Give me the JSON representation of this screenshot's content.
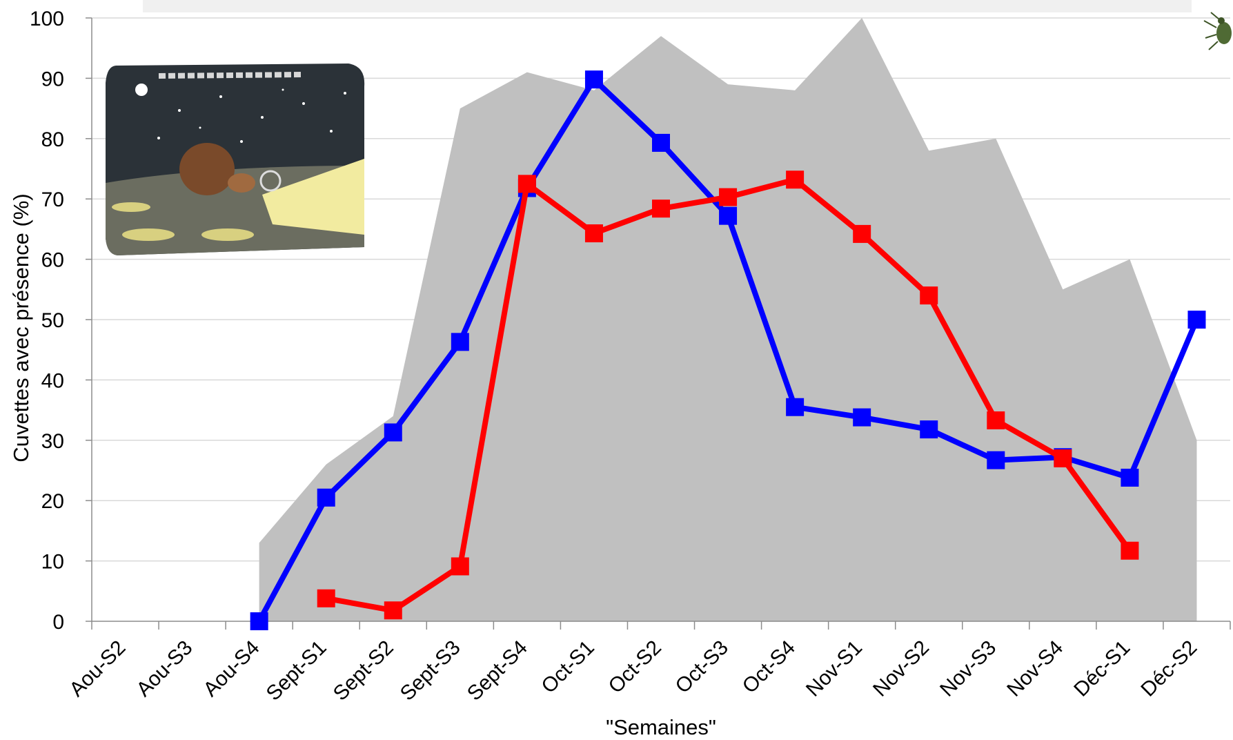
{
  "chart_data": {
    "type": "line",
    "title": "",
    "xlabel": "\"Semaines\"",
    "ylabel": "Cuvettes avec présence (%)",
    "ylim": [
      0,
      100
    ],
    "yticks": [
      0,
      10,
      20,
      30,
      40,
      50,
      60,
      70,
      80,
      90,
      100
    ],
    "grid": true,
    "categories": [
      "Aou-S2",
      "Aou-S3",
      "Aou-S4",
      "Sept-S1",
      "Sept-S2",
      "Sept-S3",
      "Sept-S4",
      "Oct-S1",
      "Oct-S2",
      "Oct-S3",
      "Oct-S4",
      "Nov-S1",
      "Nov-S2",
      "Nov-S3",
      "Nov-S4",
      "Déc-S1",
      "Déc-S2"
    ],
    "series": [
      {
        "type": "area",
        "color": "#c0c0c0",
        "values": [
          null,
          null,
          13,
          26,
          34,
          85,
          91,
          88,
          97,
          89,
          88,
          100,
          78,
          80,
          55,
          60,
          30
        ]
      },
      {
        "type": "line",
        "color": "#0000ff",
        "values": [
          null,
          null,
          0,
          20.5,
          31.3,
          46.3,
          71.8,
          89.8,
          79.3,
          67.2,
          35.5,
          33.8,
          31.8,
          26.7,
          27.2,
          23.8,
          50
        ]
      },
      {
        "type": "line",
        "color": "#ff0000",
        "values": [
          null,
          null,
          null,
          3.8,
          1.8,
          9.1,
          72.5,
          64.3,
          68.4,
          70.3,
          73.2,
          64.2,
          54,
          33.3,
          27,
          11.7,
          null
        ]
      }
    ]
  },
  "decorations": {
    "cartoon": "night-scene-cartoon-icon",
    "beetle": "beetle-icon"
  }
}
